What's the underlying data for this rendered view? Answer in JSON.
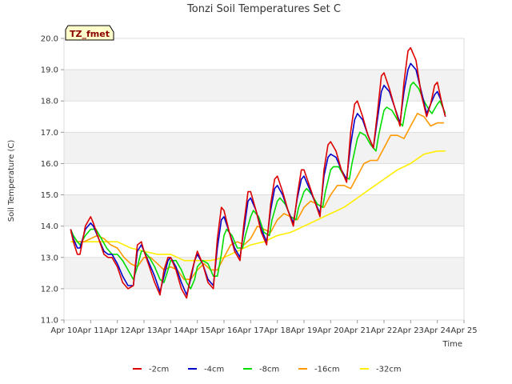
{
  "chart_data": {
    "type": "line",
    "title": "Tonzi Soil Temperatures Set C",
    "xlabel": "Time",
    "ylabel": "Soil Temperature (C)",
    "badge": "TZ_fmet",
    "ylim": [
      11.0,
      20.0
    ],
    "xlim": [
      0,
      15
    ],
    "grid": true,
    "legend_position": "bottom-center",
    "x_ticks": [
      0,
      1,
      2,
      3,
      4,
      5,
      6,
      7,
      8,
      9,
      10,
      11,
      12,
      13,
      14,
      15
    ],
    "x_tick_labels": [
      "Apr 10",
      "Apr 11",
      "Apr 12",
      "Apr 13",
      "Apr 14",
      "Apr 15",
      "Apr 16",
      "Apr 17",
      "Apr 18",
      "Apr 19",
      "Apr 20",
      "Apr 21",
      "Apr 22",
      "Apr 23",
      "Apr 24",
      "Apr 25"
    ],
    "y_ticks": [
      11.0,
      12.0,
      13.0,
      14.0,
      15.0,
      16.0,
      17.0,
      18.0,
      19.0,
      20.0
    ],
    "y_tick_labels": [
      "11.0",
      "12.0",
      "13.0",
      "14.0",
      "15.0",
      "16.0",
      "17.0",
      "18.0",
      "19.0",
      "20.0"
    ],
    "series": [
      {
        "name": "-2cm",
        "color": "#dd0000",
        "x": [
          0.25,
          0.35,
          0.5,
          0.6,
          0.8,
          1.0,
          1.1,
          1.3,
          1.5,
          1.65,
          1.8,
          2.0,
          2.2,
          2.4,
          2.6,
          2.75,
          2.9,
          3.0,
          3.2,
          3.4,
          3.6,
          3.75,
          3.9,
          4.0,
          4.2,
          4.4,
          4.6,
          4.75,
          4.9,
          5.0,
          5.2,
          5.4,
          5.6,
          5.75,
          5.9,
          6.0,
          6.2,
          6.4,
          6.6,
          6.75,
          6.9,
          7.0,
          7.2,
          7.4,
          7.6,
          7.75,
          7.9,
          8.0,
          8.2,
          8.4,
          8.6,
          8.75,
          8.9,
          9.0,
          9.2,
          9.4,
          9.6,
          9.75,
          9.9,
          10.0,
          10.2,
          10.4,
          10.6,
          10.75,
          10.9,
          11.0,
          11.2,
          11.4,
          11.6,
          11.75,
          11.9,
          12.0,
          12.2,
          12.4,
          12.6,
          12.75,
          12.9,
          13.0,
          13.2,
          13.4,
          13.6,
          13.75,
          13.9,
          14.0,
          14.15,
          14.3
        ],
        "values": [
          13.9,
          13.5,
          13.1,
          13.1,
          14.0,
          14.3,
          14.1,
          13.6,
          13.1,
          13.0,
          13.0,
          12.7,
          12.2,
          12.0,
          12.1,
          13.4,
          13.5,
          13.2,
          12.7,
          12.2,
          11.8,
          12.6,
          13.0,
          13.0,
          12.6,
          12.0,
          11.7,
          12.4,
          12.9,
          13.2,
          12.8,
          12.2,
          12.0,
          13.6,
          14.6,
          14.5,
          13.8,
          13.2,
          12.9,
          14.1,
          15.1,
          15.1,
          14.5,
          13.8,
          13.4,
          14.7,
          15.5,
          15.6,
          15.1,
          14.5,
          14.0,
          15.0,
          15.8,
          15.8,
          15.3,
          14.8,
          14.3,
          15.8,
          16.6,
          16.7,
          16.4,
          15.8,
          15.4,
          17.0,
          17.9,
          18.0,
          17.5,
          16.9,
          16.5,
          17.6,
          18.8,
          18.9,
          18.4,
          17.8,
          17.2,
          18.6,
          19.6,
          19.7,
          19.3,
          18.2,
          17.5,
          17.9,
          18.5,
          18.6,
          18.0,
          17.5
        ]
      },
      {
        "name": "-4cm",
        "color": "#0000cc",
        "x": [
          0.25,
          0.35,
          0.5,
          0.6,
          0.8,
          1.0,
          1.1,
          1.3,
          1.5,
          1.65,
          1.8,
          2.0,
          2.2,
          2.4,
          2.6,
          2.75,
          2.9,
          3.0,
          3.2,
          3.4,
          3.6,
          3.75,
          3.9,
          4.0,
          4.2,
          4.4,
          4.6,
          4.75,
          4.9,
          5.0,
          5.2,
          5.4,
          5.6,
          5.75,
          5.9,
          6.0,
          6.2,
          6.4,
          6.6,
          6.75,
          6.9,
          7.0,
          7.2,
          7.4,
          7.6,
          7.75,
          7.9,
          8.0,
          8.2,
          8.4,
          8.6,
          8.75,
          8.9,
          9.0,
          9.2,
          9.4,
          9.6,
          9.75,
          9.9,
          10.0,
          10.2,
          10.4,
          10.6,
          10.75,
          10.9,
          11.0,
          11.2,
          11.4,
          11.6,
          11.75,
          11.9,
          12.0,
          12.2,
          12.4,
          12.6,
          12.75,
          12.9,
          13.0,
          13.2,
          13.4,
          13.6,
          13.75,
          13.9,
          14.0,
          14.15,
          14.3
        ],
        "values": [
          13.9,
          13.6,
          13.3,
          13.3,
          13.9,
          14.1,
          14.0,
          13.6,
          13.2,
          13.1,
          13.1,
          12.8,
          12.4,
          12.1,
          12.1,
          13.2,
          13.4,
          13.2,
          12.8,
          12.4,
          11.9,
          12.4,
          12.9,
          13.0,
          12.7,
          12.2,
          11.8,
          12.3,
          12.9,
          13.1,
          12.8,
          12.3,
          12.1,
          13.3,
          14.2,
          14.3,
          13.8,
          13.3,
          13.0,
          13.9,
          14.8,
          14.9,
          14.5,
          13.9,
          13.5,
          14.5,
          15.2,
          15.3,
          15.0,
          14.5,
          14.1,
          14.9,
          15.5,
          15.6,
          15.2,
          14.8,
          14.4,
          15.6,
          16.2,
          16.3,
          16.2,
          15.8,
          15.5,
          16.6,
          17.4,
          17.6,
          17.4,
          16.9,
          16.5,
          17.4,
          18.3,
          18.5,
          18.3,
          17.8,
          17.3,
          18.3,
          19.0,
          19.2,
          19.0,
          18.3,
          17.6,
          17.9,
          18.2,
          18.3,
          18.0,
          17.5
        ]
      },
      {
        "name": "-8cm",
        "color": "#00dd00",
        "x": [
          0.25,
          0.35,
          0.5,
          0.6,
          0.8,
          1.0,
          1.2,
          1.4,
          1.6,
          1.8,
          2.0,
          2.2,
          2.4,
          2.6,
          2.75,
          2.9,
          3.0,
          3.2,
          3.4,
          3.6,
          3.75,
          3.9,
          4.0,
          4.2,
          4.4,
          4.6,
          4.75,
          4.9,
          5.0,
          5.2,
          5.4,
          5.6,
          5.75,
          5.9,
          6.0,
          6.1,
          6.3,
          6.5,
          6.7,
          6.8,
          7.0,
          7.1,
          7.3,
          7.5,
          7.7,
          7.8,
          8.0,
          8.1,
          8.3,
          8.5,
          8.7,
          8.8,
          9.0,
          9.1,
          9.3,
          9.5,
          9.7,
          9.8,
          10.0,
          10.1,
          10.3,
          10.5,
          10.7,
          10.8,
          11.0,
          11.1,
          11.3,
          11.5,
          11.7,
          11.8,
          12.0,
          12.1,
          12.3,
          12.5,
          12.7,
          12.8,
          13.0,
          13.1,
          13.3,
          13.5,
          13.7,
          13.8,
          14.0,
          14.1,
          14.3
        ],
        "values": [
          13.9,
          13.7,
          13.5,
          13.4,
          13.7,
          13.9,
          13.9,
          13.6,
          13.3,
          13.1,
          13.1,
          12.9,
          12.6,
          12.3,
          12.7,
          13.2,
          13.2,
          13.0,
          12.7,
          12.3,
          12.2,
          12.6,
          12.9,
          12.9,
          12.6,
          12.2,
          12.0,
          12.3,
          12.7,
          12.9,
          12.8,
          12.4,
          12.4,
          13.1,
          13.7,
          13.9,
          13.7,
          13.3,
          13.3,
          13.7,
          14.3,
          14.5,
          14.3,
          13.8,
          13.7,
          14.2,
          14.8,
          14.9,
          14.7,
          14.3,
          14.2,
          14.6,
          15.1,
          15.2,
          15.0,
          14.7,
          14.6,
          15.1,
          15.8,
          15.9,
          15.9,
          15.6,
          15.5,
          16.0,
          16.8,
          17.0,
          16.9,
          16.6,
          16.4,
          16.9,
          17.7,
          17.8,
          17.7,
          17.4,
          17.2,
          17.7,
          18.5,
          18.6,
          18.4,
          18.0,
          17.7,
          17.6,
          17.9,
          18.0,
          17.6
        ]
      },
      {
        "name": "-16cm",
        "color": "#ff9900",
        "x": [
          0.25,
          0.5,
          0.75,
          1.0,
          1.25,
          1.5,
          1.75,
          2.0,
          2.25,
          2.5,
          2.75,
          3.0,
          3.25,
          3.5,
          3.75,
          4.0,
          4.25,
          4.5,
          4.75,
          5.0,
          5.25,
          5.5,
          5.75,
          6.0,
          6.25,
          6.5,
          6.75,
          7.0,
          7.25,
          7.5,
          7.75,
          8.0,
          8.25,
          8.5,
          8.75,
          9.0,
          9.25,
          9.5,
          9.75,
          10.0,
          10.25,
          10.5,
          10.75,
          11.0,
          11.25,
          11.5,
          11.75,
          12.0,
          12.25,
          12.5,
          12.75,
          13.0,
          13.25,
          13.5,
          13.75,
          14.0,
          14.25
        ],
        "values": [
          13.8,
          13.5,
          13.5,
          13.6,
          13.7,
          13.6,
          13.4,
          13.3,
          13.0,
          12.8,
          12.7,
          13.0,
          13.0,
          12.8,
          12.6,
          12.7,
          12.6,
          12.3,
          12.3,
          12.6,
          12.8,
          12.6,
          12.6,
          13.0,
          13.4,
          13.5,
          13.4,
          13.6,
          14.0,
          13.9,
          13.8,
          14.2,
          14.4,
          14.3,
          14.2,
          14.6,
          14.8,
          14.7,
          14.6,
          15.0,
          15.3,
          15.3,
          15.2,
          15.6,
          16.0,
          16.1,
          16.1,
          16.5,
          16.9,
          16.9,
          16.8,
          17.2,
          17.6,
          17.5,
          17.2,
          17.3,
          17.3
        ]
      },
      {
        "name": "-32cm",
        "color": "#ffee00",
        "x": [
          0.25,
          0.5,
          1.0,
          1.5,
          2.0,
          2.5,
          3.0,
          3.5,
          4.0,
          4.5,
          5.0,
          5.5,
          6.0,
          6.5,
          7.0,
          7.5,
          8.0,
          8.5,
          9.0,
          9.5,
          10.0,
          10.5,
          11.0,
          11.5,
          12.0,
          12.5,
          13.0,
          13.5,
          14.0,
          14.3
        ],
        "values": [
          13.5,
          13.5,
          13.5,
          13.5,
          13.5,
          13.3,
          13.2,
          13.1,
          13.1,
          12.9,
          12.9,
          12.9,
          13.0,
          13.2,
          13.4,
          13.5,
          13.7,
          13.8,
          14.0,
          14.2,
          14.4,
          14.6,
          14.9,
          15.2,
          15.5,
          15.8,
          16.0,
          16.3,
          16.4,
          16.4
        ]
      }
    ]
  }
}
